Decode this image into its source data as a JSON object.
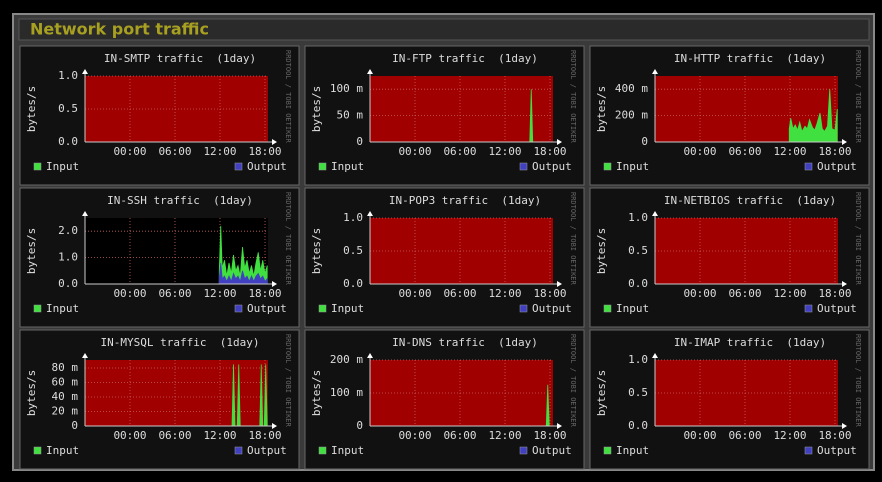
{
  "header": {
    "title": "Network port traffic"
  },
  "watermark": "RRDTOOL / TOBI OETIKER",
  "chart_data": [
    {
      "type": "area",
      "title": "IN-SMTP traffic  (1day)",
      "y_label": "bytes/s",
      "background": "#a00000",
      "xlim": [
        -6,
        18.4
      ],
      "xticks": [
        {
          "value": 0,
          "label": "00:00"
        },
        {
          "value": 6,
          "label": "06:00"
        },
        {
          "value": 12,
          "label": "12:00"
        },
        {
          "value": 18,
          "label": "18:00"
        }
      ],
      "ylim": [
        0,
        1
      ],
      "yticks": [
        {
          "value": 0,
          "label": "0.0"
        },
        {
          "value": 0.5,
          "label": "0.5"
        },
        {
          "value": 1,
          "label": "1.0"
        }
      ],
      "x": [],
      "series": [
        {
          "name": "Input",
          "color": "#40e040",
          "values": []
        },
        {
          "name": "Output",
          "color": "#4040c0",
          "values": []
        }
      ]
    },
    {
      "type": "area",
      "title": "IN-FTP traffic  (1day)",
      "y_label": "bytes/s",
      "background": "#a00000",
      "xlim": [
        -6,
        18.4
      ],
      "xticks": [
        {
          "value": 0,
          "label": "00:00"
        },
        {
          "value": 6,
          "label": "06:00"
        },
        {
          "value": 12,
          "label": "12:00"
        },
        {
          "value": 18,
          "label": "18:00"
        }
      ],
      "ylim": [
        0,
        0.125
      ],
      "yticks": [
        0,
        {
          "value": 0.05,
          "label": "50 m"
        },
        {
          "value": 0.1,
          "label": "100 m"
        }
      ],
      "x": [
        15.3,
        15.5,
        15.7
      ],
      "series": [
        {
          "name": "Input",
          "color": "#40e040",
          "values": [
            0,
            0.1,
            0
          ]
        },
        {
          "name": "Output",
          "color": "#4040c0",
          "values": [
            0,
            0,
            0
          ]
        }
      ]
    },
    {
      "type": "area",
      "title": "IN-HTTP traffic  (1day)",
      "y_label": "bytes/s",
      "background": "#a00000",
      "xlim": [
        -6,
        18.4
      ],
      "xticks": [
        {
          "value": 0,
          "label": "00:00"
        },
        {
          "value": 6,
          "label": "06:00"
        },
        {
          "value": 12,
          "label": "12:00"
        },
        {
          "value": 18,
          "label": "18:00"
        }
      ],
      "ylim": [
        0,
        0.5
      ],
      "yticks": [
        0,
        {
          "value": 0.2,
          "label": "200 m"
        },
        {
          "value": 0.4,
          "label": "400 m"
        }
      ],
      "x": [
        11.9,
        12.1,
        12.4,
        12.7,
        13,
        13.3,
        13.6,
        14,
        14.3,
        14.6,
        15,
        15.3,
        15.6,
        16,
        16.3,
        16.6,
        17,
        17.3,
        17.6,
        18,
        18.3
      ],
      "series": [
        {
          "name": "Input",
          "color": "#40e040",
          "values": [
            0.1,
            0.18,
            0.1,
            0.13,
            0.09,
            0.15,
            0.08,
            0.12,
            0.1,
            0.17,
            0.11,
            0.09,
            0.14,
            0.22,
            0.1,
            0.08,
            0.12,
            0.4,
            0.1,
            0.09,
            0.25
          ]
        },
        {
          "name": "Output",
          "color": "#4040c0",
          "values": [
            0,
            0,
            0,
            0,
            0,
            0,
            0,
            0,
            0,
            0,
            0,
            0,
            0,
            0,
            0,
            0,
            0,
            0,
            0,
            0,
            0
          ]
        }
      ]
    },
    {
      "type": "area",
      "title": "IN-SSH traffic  (1day)",
      "y_label": "bytes/s",
      "background": "#000000",
      "xlim": [
        -6,
        18.4
      ],
      "xticks": [
        {
          "value": 0,
          "label": "00:00"
        },
        {
          "value": 6,
          "label": "06:00"
        },
        {
          "value": 12,
          "label": "12:00"
        },
        {
          "value": 18,
          "label": "18:00"
        }
      ],
      "ylim": [
        0,
        2.5
      ],
      "yticks": [
        {
          "value": 0,
          "label": "0.0"
        },
        {
          "value": 1,
          "label": "1.0"
        },
        {
          "value": 2,
          "label": "2.0"
        }
      ],
      "x": [
        11.9,
        12.1,
        12.3,
        12.6,
        12.9,
        13.2,
        13.5,
        13.8,
        14.1,
        14.4,
        14.7,
        15,
        15.3,
        15.6,
        15.9,
        16.2,
        16.5,
        16.8,
        17.1,
        17.4,
        17.7,
        18,
        18.3
      ],
      "series": [
        {
          "name": "Input",
          "color": "#40e040",
          "values": [
            0.5,
            2.2,
            0.6,
            0.9,
            0.3,
            0.8,
            0.4,
            1.1,
            0.5,
            0.7,
            0.3,
            1.4,
            0.6,
            0.9,
            0.4,
            0.7,
            0.3,
            0.8,
            1.2,
            0.5,
            0.9,
            0.4,
            0.7
          ]
        },
        {
          "name": "Output",
          "color": "#4040c0",
          "values": [
            0.2,
            0.8,
            0.2,
            0.3,
            0.1,
            0.3,
            0.1,
            0.4,
            0.2,
            0.3,
            0.1,
            0.5,
            0.2,
            0.3,
            0.1,
            0.3,
            0.1,
            0.3,
            0.4,
            0.2,
            0.3,
            0.1,
            0.2
          ]
        }
      ]
    },
    {
      "type": "area",
      "title": "IN-POP3 traffic  (1day)",
      "y_label": "bytes/s",
      "background": "#a00000",
      "xlim": [
        -6,
        18.4
      ],
      "xticks": [
        {
          "value": 0,
          "label": "00:00"
        },
        {
          "value": 6,
          "label": "06:00"
        },
        {
          "value": 12,
          "label": "12:00"
        },
        {
          "value": 18,
          "label": "18:00"
        }
      ],
      "ylim": [
        0,
        1
      ],
      "yticks": [
        {
          "value": 0,
          "label": "0.0"
        },
        {
          "value": 0.5,
          "label": "0.5"
        },
        {
          "value": 1,
          "label": "1.0"
        }
      ],
      "x": [],
      "series": [
        {
          "name": "Input",
          "color": "#40e040",
          "values": []
        },
        {
          "name": "Output",
          "color": "#4040c0",
          "values": []
        }
      ]
    },
    {
      "type": "area",
      "title": "IN-NETBIOS traffic  (1day)",
      "y_label": "bytes/s",
      "background": "#a00000",
      "xlim": [
        -6,
        18.4
      ],
      "xticks": [
        {
          "value": 0,
          "label": "00:00"
        },
        {
          "value": 6,
          "label": "06:00"
        },
        {
          "value": 12,
          "label": "12:00"
        },
        {
          "value": 18,
          "label": "18:00"
        }
      ],
      "ylim": [
        0,
        1
      ],
      "yticks": [
        {
          "value": 0,
          "label": "0.0"
        },
        {
          "value": 0.5,
          "label": "0.5"
        },
        {
          "value": 1,
          "label": "1.0"
        }
      ],
      "x": [],
      "series": [
        {
          "name": "Input",
          "color": "#40e040",
          "values": []
        },
        {
          "name": "Output",
          "color": "#4040c0",
          "values": []
        }
      ]
    },
    {
      "type": "area",
      "title": "IN-MYSQL traffic  (1day)",
      "y_label": "bytes/s",
      "background": "#a00000",
      "xlim": [
        -6,
        18.4
      ],
      "xticks": [
        {
          "value": 0,
          "label": "00:00"
        },
        {
          "value": 6,
          "label": "06:00"
        },
        {
          "value": 12,
          "label": "12:00"
        },
        {
          "value": 18,
          "label": "18:00"
        }
      ],
      "ylim": [
        0,
        0.091
      ],
      "yticks": [
        0,
        {
          "value": 0.02,
          "label": "20 m"
        },
        {
          "value": 0.04,
          "label": "40 m"
        },
        {
          "value": 0.06,
          "label": "60 m"
        },
        {
          "value": 0.08,
          "label": "80 m"
        }
      ],
      "x": [
        13.6,
        13.8,
        14,
        14.3,
        14.5,
        14.7,
        17.3,
        17.5,
        17.7,
        17.9,
        18.1,
        18.3
      ],
      "series": [
        {
          "name": "Input",
          "color": "#40e040",
          "values": [
            0,
            0.085,
            0,
            0,
            0.085,
            0,
            0,
            0.085,
            0,
            0,
            0.085,
            0
          ]
        },
        {
          "name": "Output",
          "color": "#4040c0",
          "values": [
            0,
            0,
            0,
            0,
            0,
            0,
            0,
            0,
            0,
            0,
            0,
            0
          ]
        }
      ]
    },
    {
      "type": "area",
      "title": "IN-DNS traffic  (1day)",
      "y_label": "bytes/s",
      "background": "#a00000",
      "xlim": [
        -6,
        18.4
      ],
      "xticks": [
        {
          "value": 0,
          "label": "00:00"
        },
        {
          "value": 6,
          "label": "06:00"
        },
        {
          "value": 12,
          "label": "12:00"
        },
        {
          "value": 18,
          "label": "18:00"
        }
      ],
      "ylim": [
        0,
        0.2
      ],
      "yticks": [
        0,
        {
          "value": 0.1,
          "label": "100 m"
        },
        {
          "value": 0.2,
          "label": "200 m"
        }
      ],
      "x": [
        17.5,
        17.7,
        17.9
      ],
      "series": [
        {
          "name": "Input",
          "color": "#40e040",
          "values": [
            0,
            0.125,
            0
          ]
        },
        {
          "name": "Output",
          "color": "#4040c0",
          "values": [
            0,
            0,
            0
          ]
        }
      ]
    },
    {
      "type": "area",
      "title": "IN-IMAP traffic  (1day)",
      "y_label": "bytes/s",
      "background": "#a00000",
      "xlim": [
        -6,
        18.4
      ],
      "xticks": [
        {
          "value": 0,
          "label": "00:00"
        },
        {
          "value": 6,
          "label": "06:00"
        },
        {
          "value": 12,
          "label": "12:00"
        },
        {
          "value": 18,
          "label": "18:00"
        }
      ],
      "ylim": [
        0,
        1
      ],
      "yticks": [
        {
          "value": 0,
          "label": "0.0"
        },
        {
          "value": 0.5,
          "label": "0.5"
        },
        {
          "value": 1,
          "label": "1.0"
        }
      ],
      "x": [],
      "series": [
        {
          "name": "Input",
          "color": "#40e040",
          "values": []
        },
        {
          "name": "Output",
          "color": "#4040c0",
          "values": []
        }
      ]
    }
  ]
}
